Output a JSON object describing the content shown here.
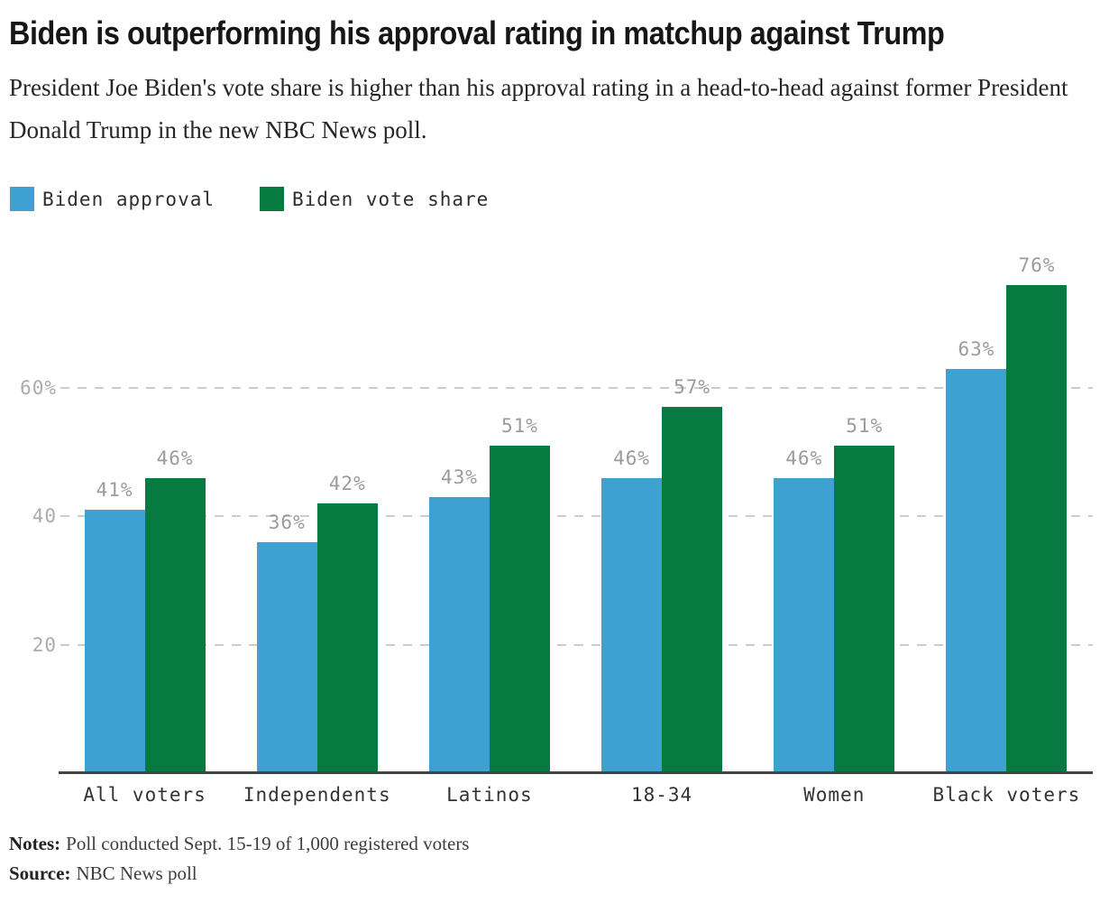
{
  "header": {
    "title": "Biden is outperforming his approval rating in matchup against Trump",
    "subtitle": "President Joe Biden's vote share is higher than his approval rating in a head-to-head against former President Donald Trump in the new NBC News poll."
  },
  "chart_data": {
    "type": "bar",
    "categories": [
      "All voters",
      "Independents",
      "Latinos",
      "18-34",
      "Women",
      "Black voters"
    ],
    "series": [
      {
        "name": "Biden approval",
        "color": "#3FA0D2",
        "values": [
          41,
          36,
          43,
          46,
          46,
          63
        ]
      },
      {
        "name": "Biden vote share",
        "color": "#077A41",
        "values": [
          46,
          42,
          51,
          57,
          51,
          76
        ]
      }
    ],
    "value_suffix": "%",
    "y_axis": {
      "range": [
        0,
        80
      ],
      "ticks": [
        {
          "value": 20,
          "label": "20"
        },
        {
          "value": 40,
          "label": "40"
        },
        {
          "value": 60,
          "label": "60%"
        }
      ],
      "gridlines": "dashed"
    },
    "legend_position": "top-left",
    "style": {
      "grid_color": "#CCCCCC",
      "axis_color": "#444444",
      "value_label_color": "#9B9B9B",
      "tick_label_color": "#ABABAB",
      "category_label_color": "#333333"
    }
  },
  "footer": {
    "notes_label": "Notes:",
    "notes_text": "Poll conducted Sept. 15-19 of 1,000 registered voters",
    "source_label": "Source:",
    "source_text": "NBC News poll"
  }
}
